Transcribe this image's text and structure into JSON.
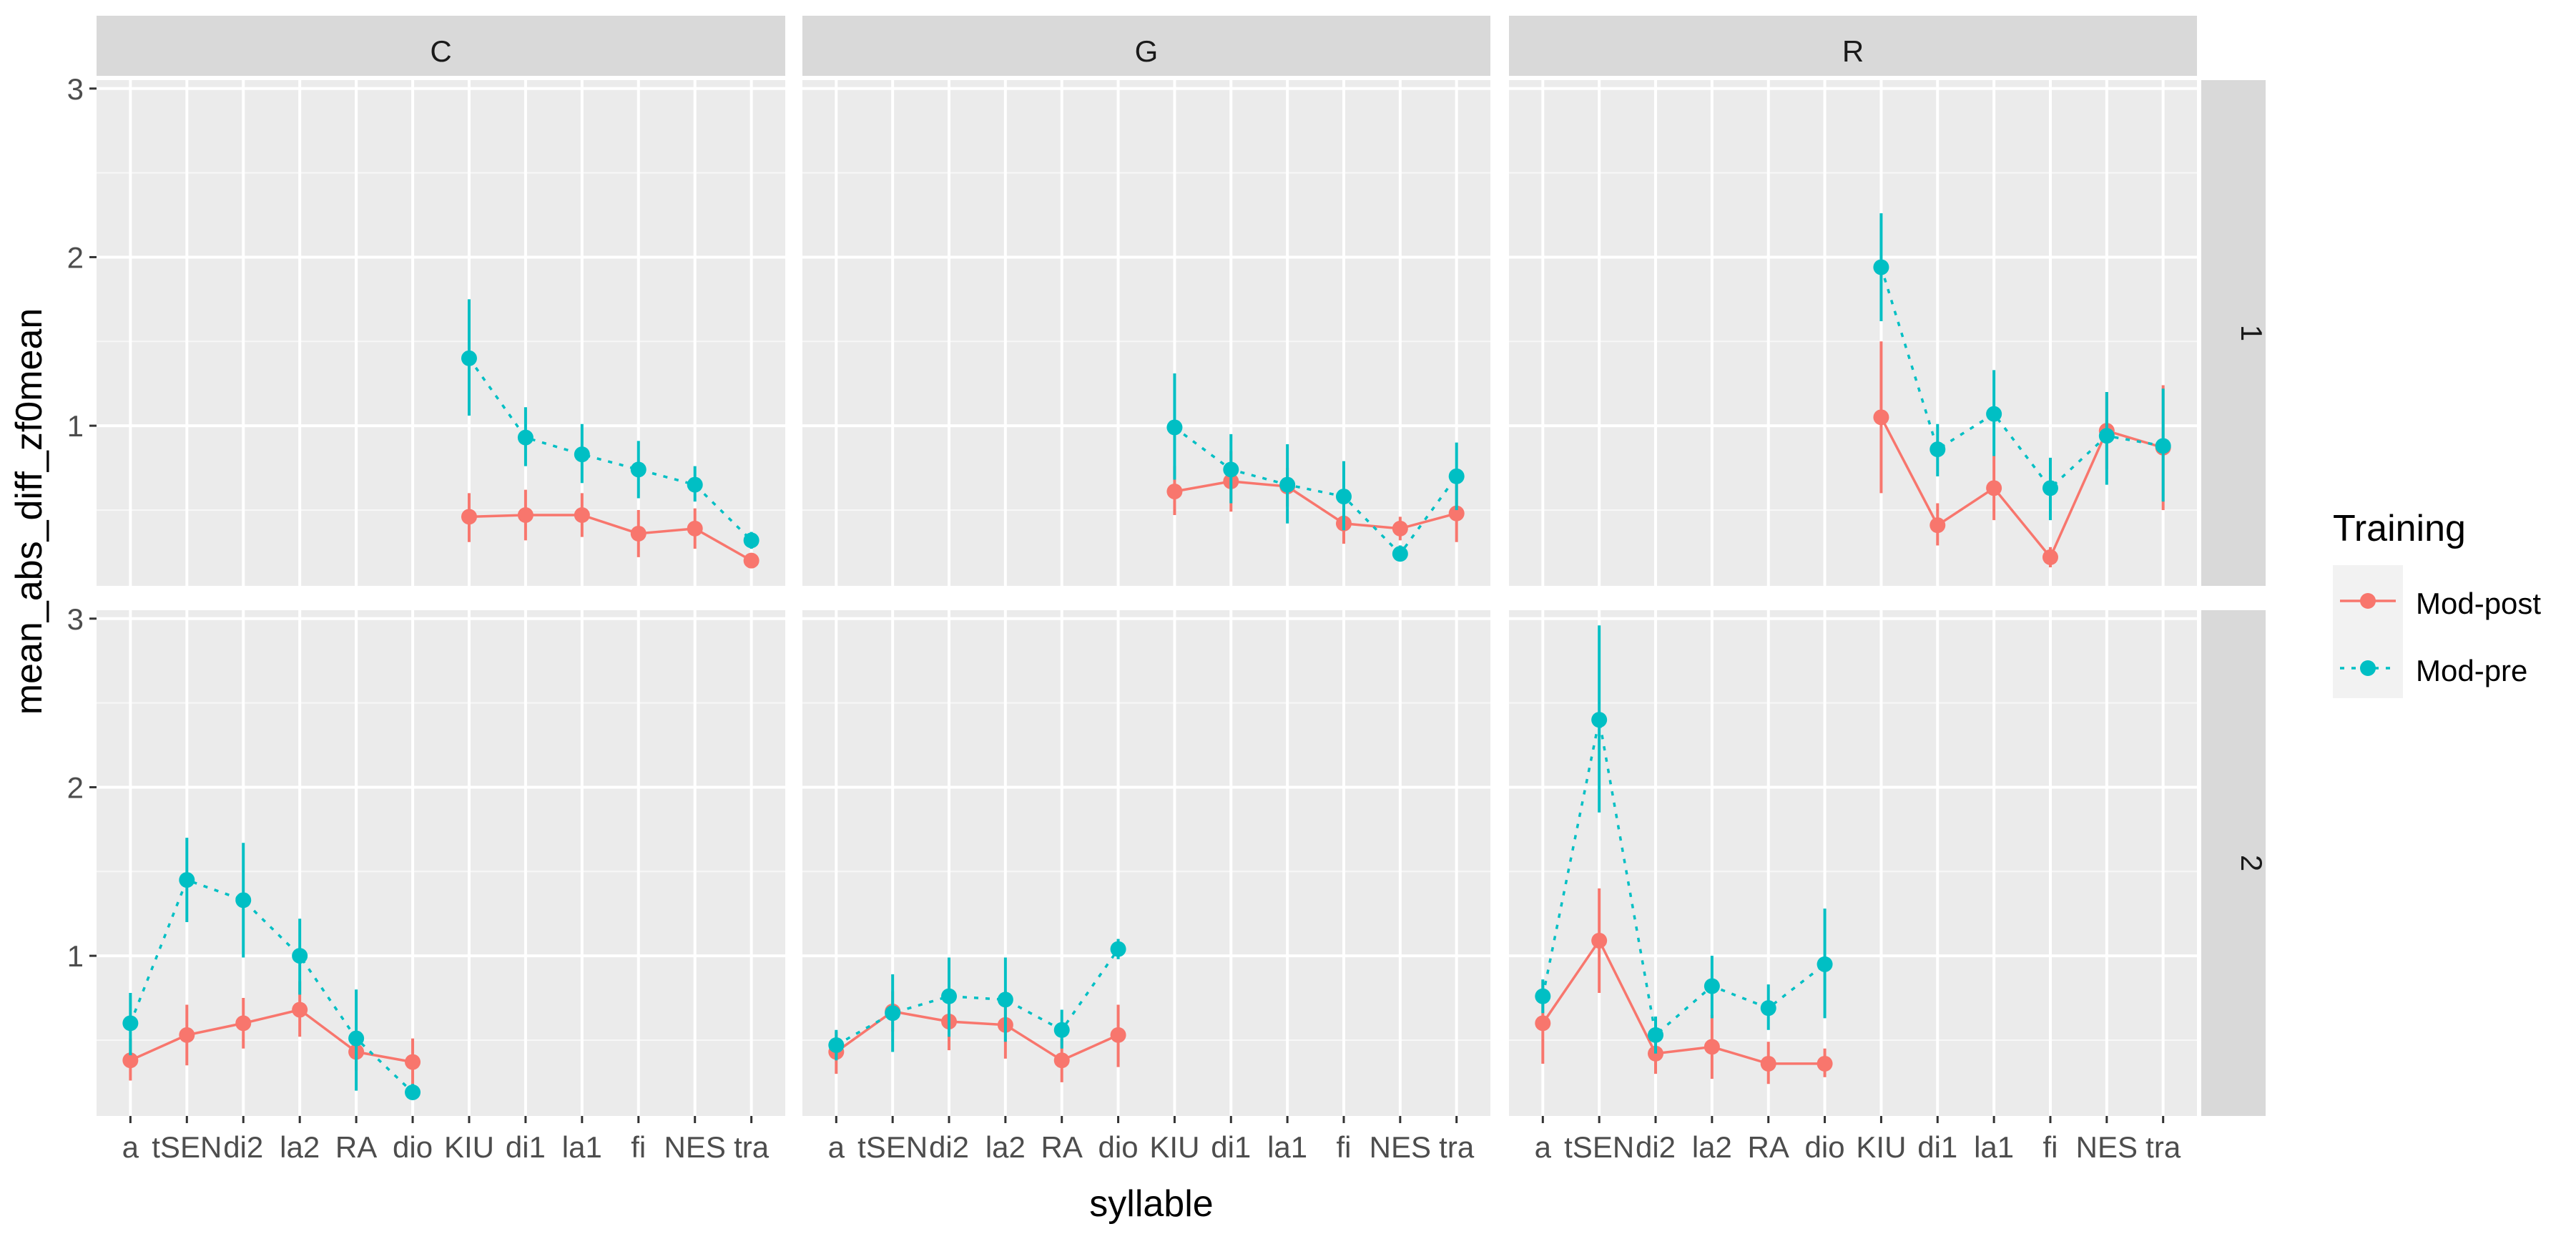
{
  "chart_data": {
    "type": "line",
    "facet_columns": [
      "C",
      "G",
      "R"
    ],
    "facet_rows": [
      "1",
      "2"
    ],
    "xlabel": "syllable",
    "ylabel": "mean_abs_diff_zf0mean",
    "categories": [
      "a",
      "tSEN",
      "di2",
      "la2",
      "RA",
      "dio",
      "KIU",
      "di1",
      "la1",
      "fi",
      "NES",
      "tra"
    ],
    "yticks": [
      1,
      2,
      3
    ],
    "ylim": [
      0.05,
      3.05
    ],
    "grid": true,
    "legend": {
      "title": "Training",
      "placement": "right",
      "entries": [
        {
          "name": "Mod-post",
          "color": "#F8766D",
          "linetype": "solid"
        },
        {
          "name": "Mod-pre",
          "color": "#00BFC4",
          "linetype": "dotted"
        }
      ]
    },
    "panels": [
      {
        "col": "C",
        "row": "1",
        "series": [
          {
            "name": "Mod-post",
            "points": [
              {
                "x": "KIU",
                "y": 0.46,
                "lo": 0.31,
                "hi": 0.6
              },
              {
                "x": "di1",
                "y": 0.47,
                "lo": 0.32,
                "hi": 0.62
              },
              {
                "x": "la1",
                "y": 0.47,
                "lo": 0.34,
                "hi": 0.6
              },
              {
                "x": "fi",
                "y": 0.36,
                "lo": 0.22,
                "hi": 0.5
              },
              {
                "x": "NES",
                "y": 0.39,
                "lo": 0.27,
                "hi": 0.51
              },
              {
                "x": "tra",
                "y": 0.2,
                "lo": 0.16,
                "hi": 0.24
              }
            ]
          },
          {
            "name": "Mod-pre",
            "points": [
              {
                "x": "KIU",
                "y": 1.4,
                "lo": 1.06,
                "hi": 1.75
              },
              {
                "x": "di1",
                "y": 0.93,
                "lo": 0.76,
                "hi": 1.11
              },
              {
                "x": "la1",
                "y": 0.83,
                "lo": 0.66,
                "hi": 1.01
              },
              {
                "x": "fi",
                "y": 0.74,
                "lo": 0.57,
                "hi": 0.91
              },
              {
                "x": "NES",
                "y": 0.65,
                "lo": 0.55,
                "hi": 0.76
              },
              {
                "x": "tra",
                "y": 0.32,
                "lo": 0.27,
                "hi": 0.37
              }
            ]
          }
        ]
      },
      {
        "col": "G",
        "row": "1",
        "series": [
          {
            "name": "Mod-post",
            "points": [
              {
                "x": "KIU",
                "y": 0.61,
                "lo": 0.47,
                "hi": 0.76
              },
              {
                "x": "di1",
                "y": 0.67,
                "lo": 0.49,
                "hi": 0.85
              },
              {
                "x": "la1",
                "y": 0.64,
                "lo": 0.52,
                "hi": 0.75
              },
              {
                "x": "fi",
                "y": 0.42,
                "lo": 0.3,
                "hi": 0.55
              },
              {
                "x": "NES",
                "y": 0.39,
                "lo": 0.32,
                "hi": 0.46
              },
              {
                "x": "tra",
                "y": 0.48,
                "lo": 0.31,
                "hi": 0.65
              }
            ]
          },
          {
            "name": "Mod-pre",
            "points": [
              {
                "x": "KIU",
                "y": 0.99,
                "lo": 0.68,
                "hi": 1.31
              },
              {
                "x": "di1",
                "y": 0.74,
                "lo": 0.54,
                "hi": 0.95
              },
              {
                "x": "la1",
                "y": 0.65,
                "lo": 0.42,
                "hi": 0.89
              },
              {
                "x": "fi",
                "y": 0.58,
                "lo": 0.38,
                "hi": 0.79
              },
              {
                "x": "NES",
                "y": 0.24,
                "lo": 0.2,
                "hi": 0.29
              },
              {
                "x": "tra",
                "y": 0.7,
                "lo": 0.5,
                "hi": 0.9
              }
            ]
          }
        ]
      },
      {
        "col": "R",
        "row": "1",
        "series": [
          {
            "name": "Mod-post",
            "points": [
              {
                "x": "KIU",
                "y": 1.05,
                "lo": 0.6,
                "hi": 1.5
              },
              {
                "x": "di1",
                "y": 0.41,
                "lo": 0.29,
                "hi": 0.54
              },
              {
                "x": "la1",
                "y": 0.63,
                "lo": 0.44,
                "hi": 0.82
              },
              {
                "x": "fi",
                "y": 0.22,
                "lo": 0.16,
                "hi": 0.28
              },
              {
                "x": "NES",
                "y": 0.97,
                "lo": 0.74,
                "hi": 1.2
              },
              {
                "x": "tra",
                "y": 0.87,
                "lo": 0.5,
                "hi": 1.24
              }
            ]
          },
          {
            "name": "Mod-pre",
            "points": [
              {
                "x": "KIU",
                "y": 1.94,
                "lo": 1.62,
                "hi": 2.26
              },
              {
                "x": "di1",
                "y": 0.86,
                "lo": 0.7,
                "hi": 1.01
              },
              {
                "x": "la1",
                "y": 1.07,
                "lo": 0.82,
                "hi": 1.33
              },
              {
                "x": "fi",
                "y": 0.63,
                "lo": 0.44,
                "hi": 0.81
              },
              {
                "x": "NES",
                "y": 0.94,
                "lo": 0.65,
                "hi": 1.2
              },
              {
                "x": "tra",
                "y": 0.88,
                "lo": 0.55,
                "hi": 1.22
              }
            ]
          }
        ]
      },
      {
        "col": "C",
        "row": "2",
        "series": [
          {
            "name": "Mod-post",
            "points": [
              {
                "x": "a",
                "y": 0.38,
                "lo": 0.26,
                "hi": 0.51
              },
              {
                "x": "tSEN",
                "y": 0.53,
                "lo": 0.35,
                "hi": 0.71
              },
              {
                "x": "di2",
                "y": 0.6,
                "lo": 0.45,
                "hi": 0.75
              },
              {
                "x": "la2",
                "y": 0.68,
                "lo": 0.52,
                "hi": 0.85
              },
              {
                "x": "RA",
                "y": 0.43,
                "lo": 0.32,
                "hi": 0.54
              },
              {
                "x": "dio",
                "y": 0.37,
                "lo": 0.22,
                "hi": 0.51
              }
            ]
          },
          {
            "name": "Mod-pre",
            "points": [
              {
                "x": "a",
                "y": 0.6,
                "lo": 0.41,
                "hi": 0.78
              },
              {
                "x": "tSEN",
                "y": 1.45,
                "lo": 1.2,
                "hi": 1.7
              },
              {
                "x": "di2",
                "y": 1.33,
                "lo": 0.99,
                "hi": 1.67
              },
              {
                "x": "la2",
                "y": 1.0,
                "lo": 0.77,
                "hi": 1.22
              },
              {
                "x": "RA",
                "y": 0.51,
                "lo": 0.2,
                "hi": 0.8
              },
              {
                "x": "dio",
                "y": 0.19,
                "lo": 0.15,
                "hi": 0.24
              }
            ]
          }
        ]
      },
      {
        "col": "G",
        "row": "2",
        "series": [
          {
            "name": "Mod-post",
            "points": [
              {
                "x": "a",
                "y": 0.43,
                "lo": 0.3,
                "hi": 0.55
              },
              {
                "x": "tSEN",
                "y": 0.67,
                "lo": 0.55,
                "hi": 0.79
              },
              {
                "x": "di2",
                "y": 0.61,
                "lo": 0.44,
                "hi": 0.78
              },
              {
                "x": "la2",
                "y": 0.59,
                "lo": 0.39,
                "hi": 0.79
              },
              {
                "x": "RA",
                "y": 0.38,
                "lo": 0.25,
                "hi": 0.51
              },
              {
                "x": "dio",
                "y": 0.53,
                "lo": 0.34,
                "hi": 0.71
              }
            ]
          },
          {
            "name": "Mod-pre",
            "points": [
              {
                "x": "a",
                "y": 0.47,
                "lo": 0.38,
                "hi": 0.56
              },
              {
                "x": "tSEN",
                "y": 0.66,
                "lo": 0.43,
                "hi": 0.89
              },
              {
                "x": "di2",
                "y": 0.76,
                "lo": 0.52,
                "hi": 0.99
              },
              {
                "x": "la2",
                "y": 0.74,
                "lo": 0.49,
                "hi": 0.99
              },
              {
                "x": "RA",
                "y": 0.56,
                "lo": 0.45,
                "hi": 0.68
              },
              {
                "x": "dio",
                "y": 1.04,
                "lo": 0.98,
                "hi": 1.1
              }
            ]
          }
        ]
      },
      {
        "col": "R",
        "row": "2",
        "series": [
          {
            "name": "Mod-post",
            "points": [
              {
                "x": "a",
                "y": 0.6,
                "lo": 0.36,
                "hi": 0.85
              },
              {
                "x": "tSEN",
                "y": 1.09,
                "lo": 0.78,
                "hi": 1.4
              },
              {
                "x": "di2",
                "y": 0.42,
                "lo": 0.3,
                "hi": 0.54
              },
              {
                "x": "la2",
                "y": 0.46,
                "lo": 0.27,
                "hi": 0.65
              },
              {
                "x": "RA",
                "y": 0.36,
                "lo": 0.24,
                "hi": 0.49
              },
              {
                "x": "dio",
                "y": 0.36,
                "lo": 0.28,
                "hi": 0.45
              }
            ]
          },
          {
            "name": "Mod-pre",
            "points": [
              {
                "x": "a",
                "y": 0.76,
                "lo": 0.66,
                "hi": 0.86
              },
              {
                "x": "tSEN",
                "y": 2.4,
                "lo": 1.85,
                "hi": 2.96
              },
              {
                "x": "di2",
                "y": 0.53,
                "lo": 0.42,
                "hi": 0.64
              },
              {
                "x": "la2",
                "y": 0.82,
                "lo": 0.63,
                "hi": 1.0
              },
              {
                "x": "RA",
                "y": 0.69,
                "lo": 0.56,
                "hi": 0.83
              },
              {
                "x": "dio",
                "y": 0.95,
                "lo": 0.63,
                "hi": 1.28
              }
            ]
          }
        ]
      }
    ]
  }
}
